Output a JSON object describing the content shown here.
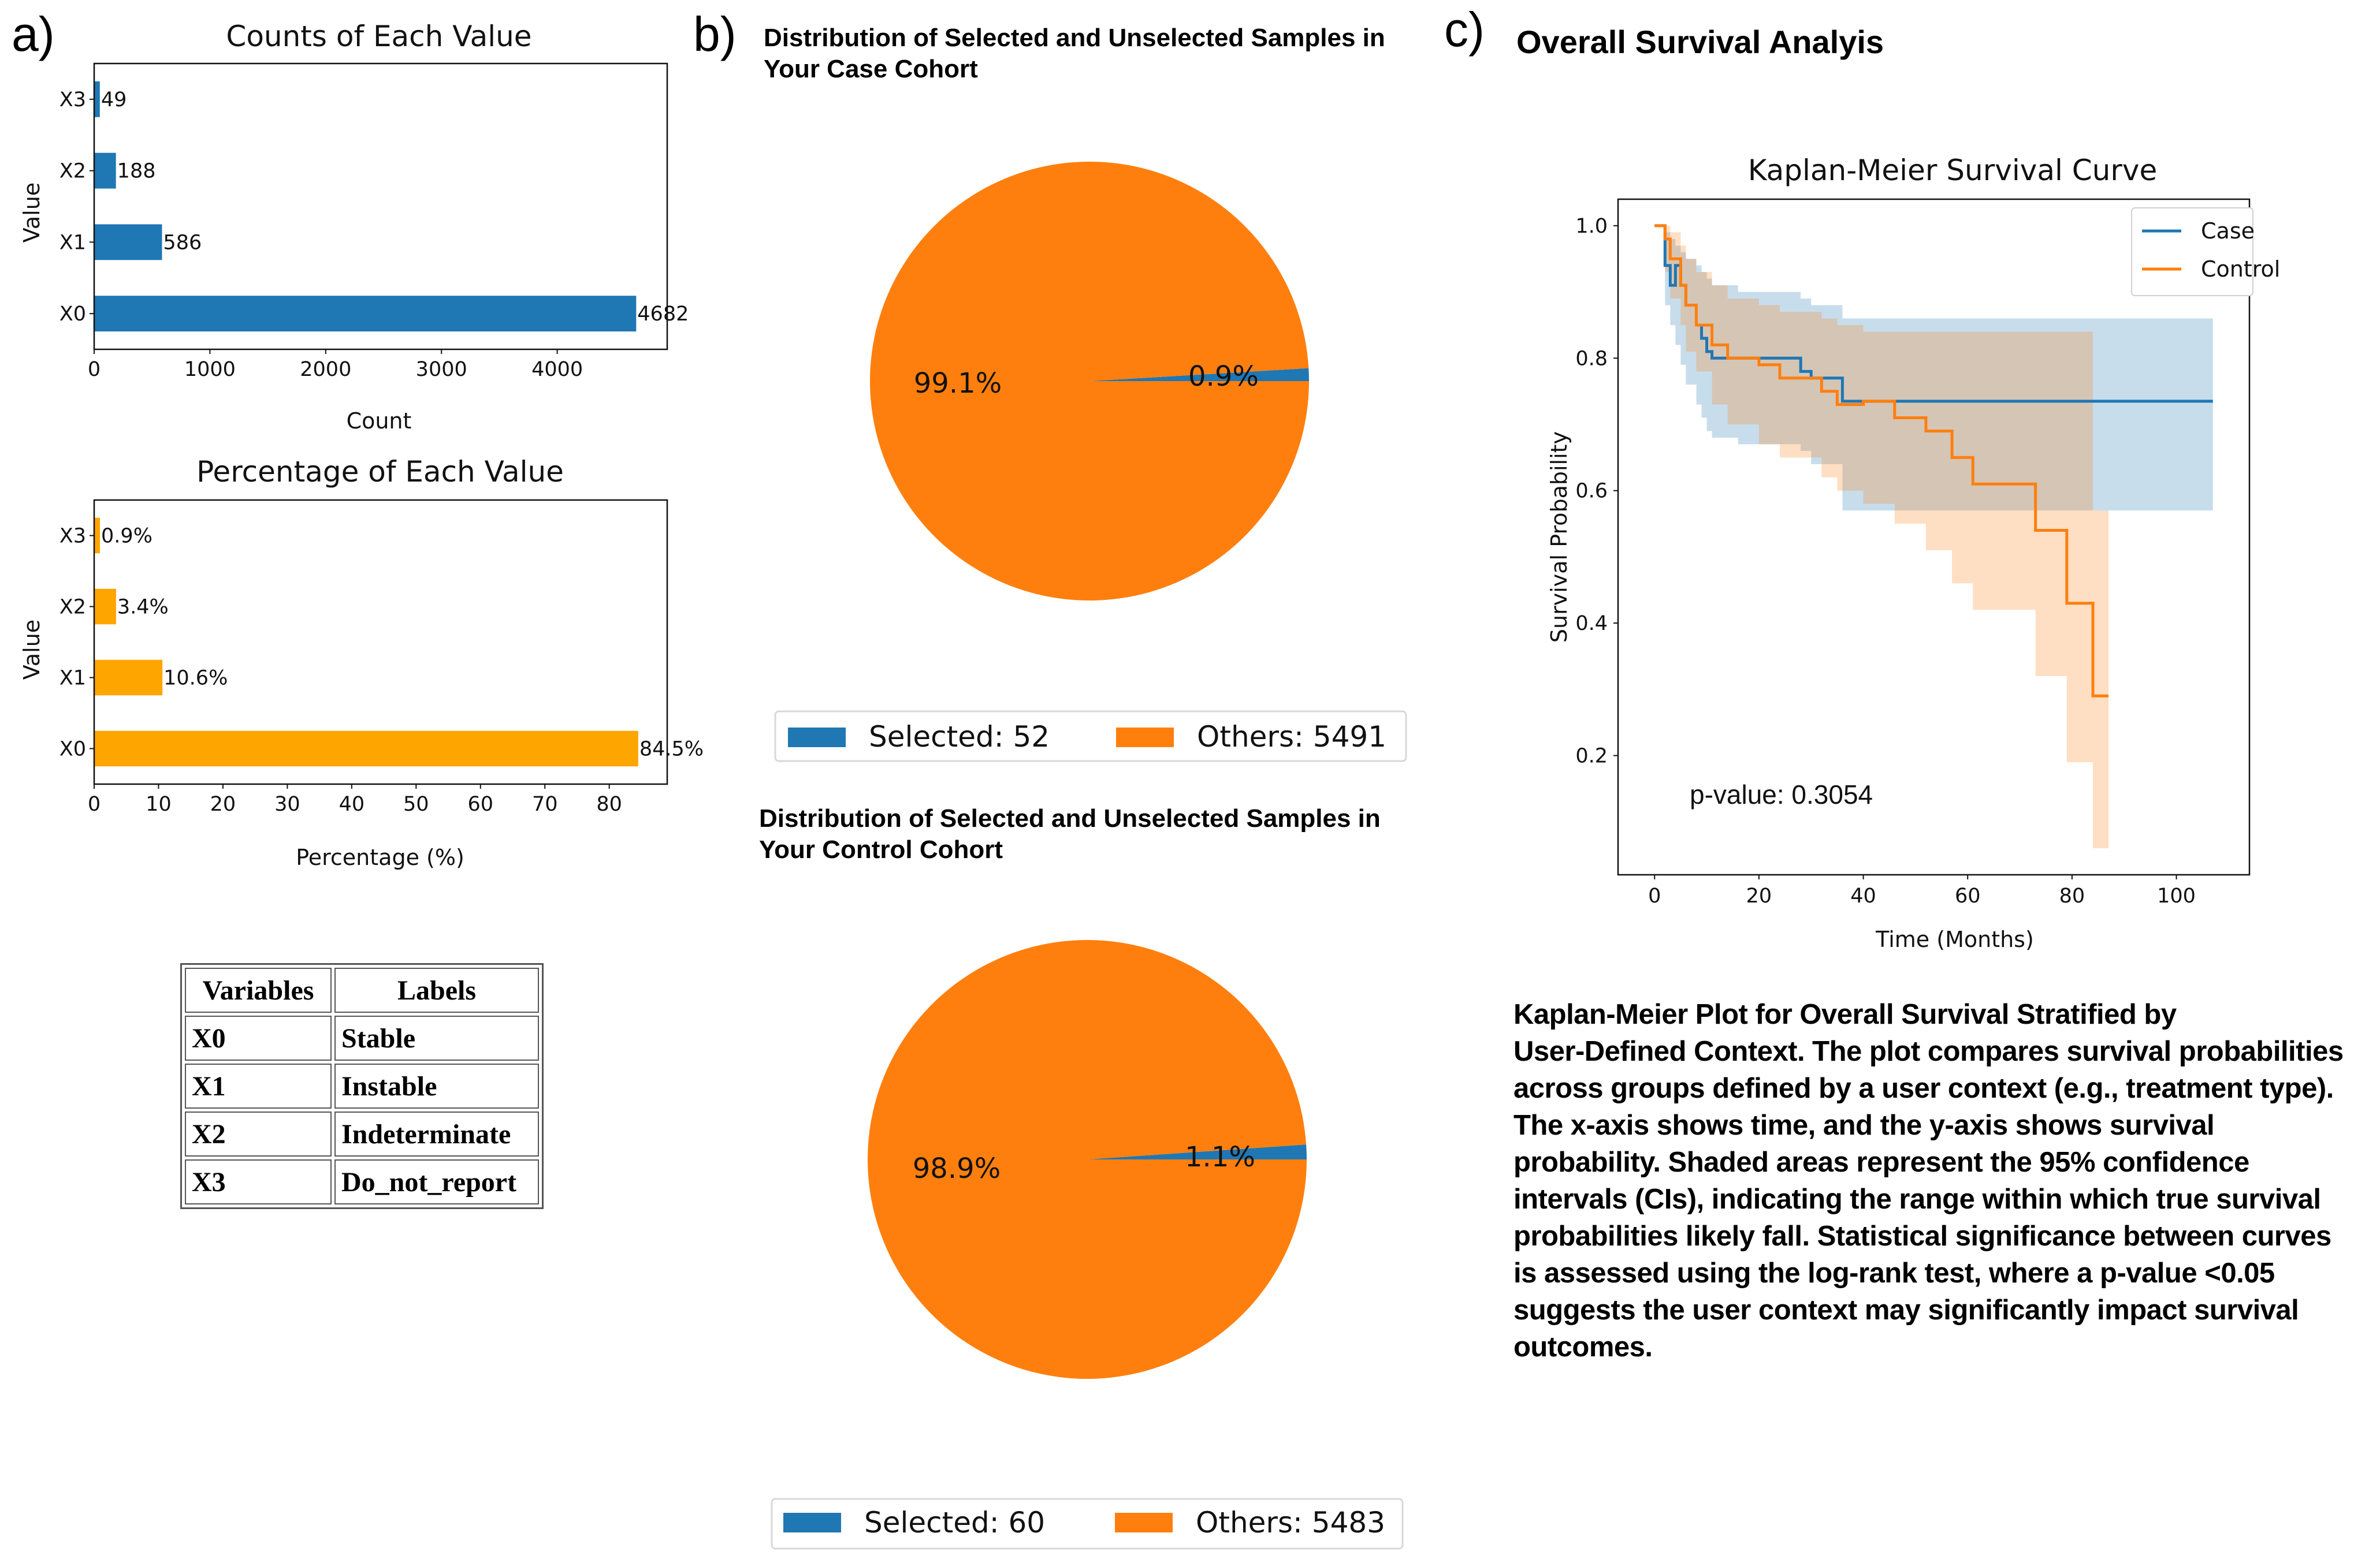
{
  "panels": {
    "a": {
      "letter": "a)",
      "chart_data": [
        {
          "type": "bar",
          "orientation": "horizontal",
          "title": "Counts of Each Value",
          "xlabel": "Count",
          "ylabel": "Value",
          "categories": [
            "X0",
            "X1",
            "X2",
            "X3"
          ],
          "values": [
            4682,
            586,
            188,
            49
          ],
          "value_labels": [
            "4682",
            "586",
            "188",
            "49"
          ],
          "xlim": [
            0,
            4950
          ],
          "xticks": [
            0,
            1000,
            2000,
            3000,
            4000
          ],
          "xtick_labels": [
            "0",
            "1000",
            "2000",
            "3000",
            "4000"
          ],
          "color": "#1f77b4"
        },
        {
          "type": "bar",
          "orientation": "horizontal",
          "title": "Percentage of Each Value",
          "xlabel": "Percentage (%)",
          "ylabel": "Value",
          "categories": [
            "X0",
            "X1",
            "X2",
            "X3"
          ],
          "values": [
            84.5,
            10.6,
            3.4,
            0.9
          ],
          "value_labels": [
            "84.5%",
            "10.6%",
            "3.4%",
            "0.9%"
          ],
          "xlim": [
            0,
            89
          ],
          "xticks": [
            0,
            10,
            20,
            30,
            40,
            50,
            60,
            70,
            80
          ],
          "xtick_labels": [
            "0",
            "10",
            "20",
            "30",
            "40",
            "50",
            "60",
            "70",
            "80"
          ],
          "color": "#ffa500"
        }
      ],
      "table": {
        "headers": [
          "Variables",
          "Labels"
        ],
        "rows": [
          [
            "X0",
            "Stable"
          ],
          [
            "X1",
            "Instable"
          ],
          [
            "X2",
            "Indeterminate"
          ],
          [
            "X3",
            "Do_not_report"
          ]
        ]
      }
    },
    "b": {
      "letter": "b)",
      "chart_data": [
        {
          "type": "pie",
          "title_lines": [
            "Distribution of Selected and Unselected Samples in",
            "Your Case Cohort"
          ],
          "labels": [
            "Selected",
            "Others"
          ],
          "values": [
            52,
            5491
          ],
          "pct_labels": [
            "0.9%",
            "99.1%"
          ],
          "legend": [
            "Selected: 52",
            "Others: 5491"
          ],
          "colors": [
            "#1f77b4",
            "#ff7f0e"
          ]
        },
        {
          "type": "pie",
          "title_lines": [
            "Distribution of Selected and Unselected Samples in",
            "Your Control Cohort"
          ],
          "labels": [
            "Selected",
            "Others"
          ],
          "values": [
            60,
            5483
          ],
          "pct_labels": [
            "1.1%",
            "98.9%"
          ],
          "legend": [
            "Selected: 60",
            "Others: 5483"
          ],
          "colors": [
            "#1f77b4",
            "#ff7f0e"
          ]
        }
      ]
    },
    "c": {
      "letter": "c)",
      "heading": "Overall Survival Analyis",
      "chart_data": {
        "type": "line",
        "subtype": "step",
        "title": "Kaplan-Meier Survival Curve",
        "xlabel": "Time (Months)",
        "ylabel": "Survival Probability",
        "xlim": [
          -7,
          114
        ],
        "ylim": [
          0.02,
          1.04
        ],
        "xticks": [
          0,
          20,
          40,
          60,
          80,
          100
        ],
        "yticks": [
          0.2,
          0.4,
          0.6,
          0.8,
          1.0
        ],
        "xtick_labels": [
          "0",
          "20",
          "40",
          "60",
          "80",
          "100"
        ],
        "ytick_labels": [
          "0.2",
          "0.4",
          "0.6",
          "0.8",
          "1.0"
        ],
        "annotation": "p-value: 0.3054",
        "legend": [
          "Case",
          "Control"
        ],
        "series": [
          {
            "name": "Case",
            "color": "#1f77b4",
            "x": [
              0,
              2,
              3,
              4,
              5,
              6,
              8,
              9,
              10,
              11,
              16,
              28,
              30,
              36,
              107
            ],
            "y": [
              1.0,
              0.94,
              0.91,
              0.94,
              0.91,
              0.88,
              0.85,
              0.83,
              0.81,
              0.8,
              0.8,
              0.78,
              0.77,
              0.735,
              0.735
            ],
            "ci_upper": [
              1.0,
              0.99,
              0.98,
              0.97,
              0.96,
              0.95,
              0.94,
              0.93,
              0.92,
              0.91,
              0.9,
              0.89,
              0.88,
              0.86,
              0.84
            ],
            "ci_lower": [
              1.0,
              0.88,
              0.85,
              0.82,
              0.79,
              0.76,
              0.73,
              0.71,
              0.69,
              0.68,
              0.67,
              0.66,
              0.64,
              0.57,
              0.57
            ]
          },
          {
            "name": "Control",
            "color": "#ff7f0e",
            "x": [
              0,
              2,
              3,
              5,
              6,
              8,
              11,
              14,
              20,
              24,
              32,
              35,
              40,
              46,
              52,
              57,
              61,
              73,
              79,
              84,
              87
            ],
            "y": [
              1.0,
              0.98,
              0.95,
              0.91,
              0.88,
              0.85,
              0.82,
              0.8,
              0.79,
              0.77,
              0.75,
              0.73,
              0.735,
              0.71,
              0.69,
              0.65,
              0.61,
              0.54,
              0.43,
              0.29,
              0.29
            ],
            "ci_upper": [
              1.0,
              1.0,
              0.99,
              0.97,
              0.95,
              0.93,
              0.91,
              0.89,
              0.88,
              0.87,
              0.86,
              0.85,
              0.84,
              0.84,
              0.84,
              0.84,
              0.84,
              0.84,
              0.84,
              0.57,
              0.57
            ],
            "ci_lower": [
              1.0,
              0.93,
              0.89,
              0.85,
              0.81,
              0.78,
              0.73,
              0.7,
              0.67,
              0.65,
              0.62,
              0.6,
              0.58,
              0.55,
              0.51,
              0.46,
              0.42,
              0.32,
              0.19,
              0.06,
              0.06
            ]
          }
        ]
      },
      "caption_lines": [
        "Kaplan-Meier Plot for Overall Survival Stratified by",
        "User-Defined Context. The plot compares survival probabilities",
        "across groups defined by a user context (e.g., treatment type).",
        "The x-axis shows time, and the y-axis shows survival",
        "probability. Shaded areas represent the 95% confidence",
        "intervals (CIs), indicating the range within which true survival",
        "probabilities likely fall. Statistical significance between curves",
        "is assessed using the log-rank test, where a p-value <0.05",
        "suggests the user context may significantly impact survival",
        "outcomes."
      ]
    }
  }
}
